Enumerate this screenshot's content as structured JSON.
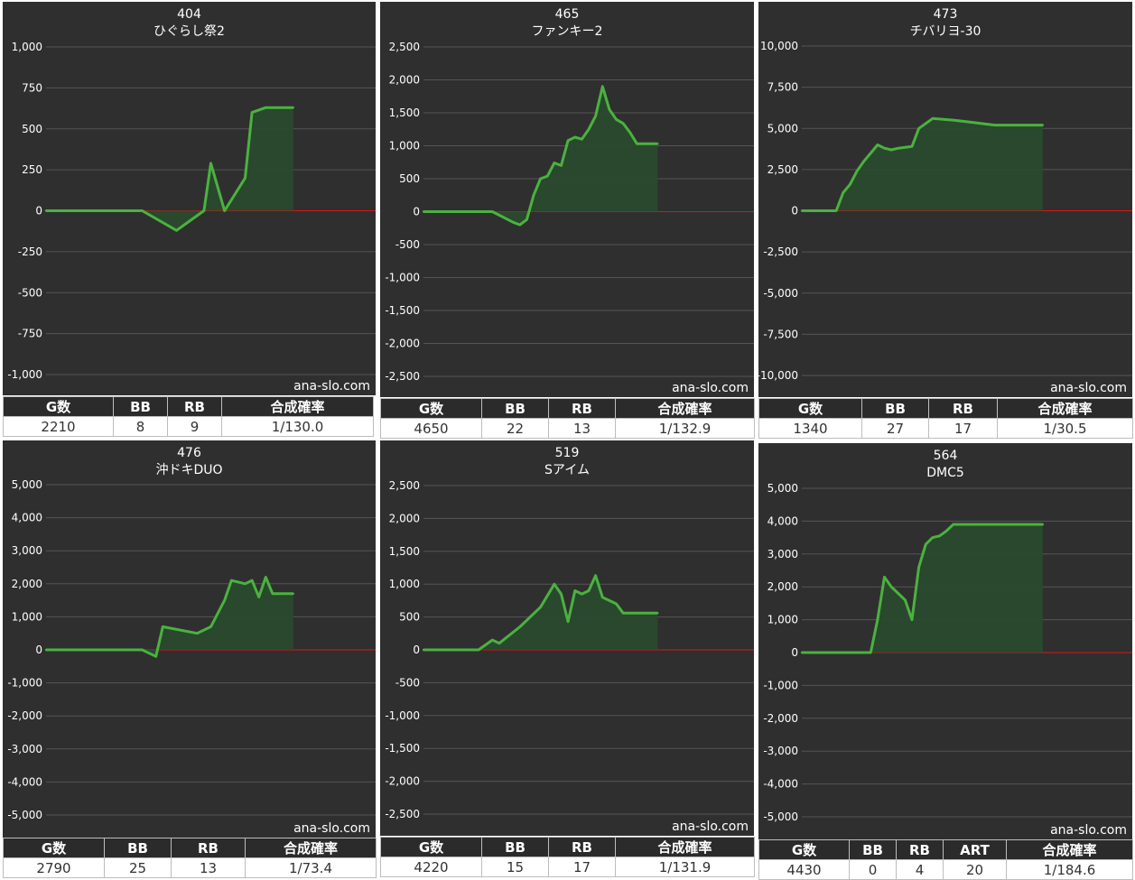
{
  "chart_data": [
    {
      "type": "area",
      "title": "404",
      "subtitle": "ひぐらし祭2",
      "watermark": "ana-slo.com",
      "ylim": [
        -1000,
        1000
      ],
      "yticks": [
        1000,
        750,
        500,
        250,
        0,
        -250,
        -500,
        -750,
        -1000
      ],
      "ytick_labels": [
        "1,000",
        "750",
        "500",
        "250",
        "0",
        "-250",
        "-500",
        "-750",
        "-1,000"
      ],
      "grid": true,
      "x": [
        0,
        5,
        10,
        14,
        19,
        21,
        23,
        24,
        26,
        29,
        30,
        32,
        34,
        36
      ],
      "y": [
        0,
        0,
        0,
        0,
        -120,
        -60,
        0,
        290,
        0,
        200,
        600,
        630,
        630,
        630
      ],
      "xlim": [
        0,
        48
      ],
      "stats": {
        "headers": [
          "G数",
          "BB",
          "RB",
          "合成確率"
        ],
        "values": [
          "2210",
          "8",
          "9",
          "1/130.0"
        ]
      }
    },
    {
      "type": "area",
      "title": "465",
      "subtitle": "ファンキー2",
      "watermark": "ana-slo.com",
      "ylim": [
        -2500,
        2500
      ],
      "yticks": [
        2500,
        2000,
        1500,
        1000,
        500,
        0,
        -500,
        -1000,
        -1500,
        -2000,
        -2500
      ],
      "ytick_labels": [
        "2,500",
        "2,000",
        "1,500",
        "1,000",
        "500",
        "0",
        "-500",
        "-1,000",
        "-1,500",
        "-2,000",
        "-2,500"
      ],
      "grid": true,
      "x": [
        0,
        5,
        10,
        13,
        14,
        15,
        16,
        17,
        18,
        19,
        20,
        21,
        22,
        23,
        24,
        25,
        26,
        27,
        28,
        29,
        30,
        31,
        33,
        34
      ],
      "y": [
        0,
        0,
        0,
        -160,
        -200,
        -120,
        250,
        500,
        540,
        740,
        700,
        1080,
        1130,
        1100,
        1250,
        1450,
        1900,
        1550,
        1400,
        1340,
        1200,
        1030,
        1030,
        1030
      ],
      "xlim": [
        0,
        48
      ],
      "stats": {
        "headers": [
          "G数",
          "BB",
          "RB",
          "合成確率"
        ],
        "values": [
          "4650",
          "22",
          "13",
          "1/132.9"
        ]
      }
    },
    {
      "type": "area",
      "title": "473",
      "subtitle": "チバリヨ-30",
      "watermark": "ana-slo.com",
      "ylim": [
        -10000,
        10000
      ],
      "yticks": [
        10000,
        7500,
        5000,
        2500,
        0,
        -2500,
        -5000,
        -7500,
        -10000
      ],
      "ytick_labels": [
        "10,000",
        "7,500",
        "5,000",
        "2,500",
        "0",
        "-2,500",
        "-5,000",
        "-7,500",
        "-10,000"
      ],
      "grid": true,
      "x": [
        0,
        3,
        5,
        6,
        7,
        8,
        9,
        10,
        11,
        12,
        13,
        14,
        16,
        17,
        19,
        22,
        24,
        26,
        28,
        32,
        35
      ],
      "y": [
        0,
        0,
        0,
        1100,
        1600,
        2400,
        3000,
        3500,
        4000,
        3800,
        3700,
        3800,
        3900,
        5000,
        5600,
        5500,
        5400,
        5300,
        5200,
        5200,
        5200
      ],
      "xlim": [
        0,
        48
      ],
      "stats": {
        "headers": [
          "G数",
          "BB",
          "RB",
          "合成確率"
        ],
        "values": [
          "1340",
          "27",
          "17",
          "1/30.5"
        ]
      }
    },
    {
      "type": "area",
      "title": "476",
      "subtitle": "沖ドキDUO",
      "watermark": "ana-slo.com",
      "ylim": [
        -5000,
        5000
      ],
      "yticks": [
        5000,
        4000,
        3000,
        2000,
        1000,
        0,
        -1000,
        -2000,
        -3000,
        -4000,
        -5000
      ],
      "ytick_labels": [
        "5,000",
        "4,000",
        "3,000",
        "2,000",
        "1,000",
        "0",
        "-1,000",
        "-2,000",
        "-3,000",
        "-4,000",
        "-5,000"
      ],
      "grid": true,
      "x": [
        0,
        6,
        12,
        14,
        15,
        16,
        17,
        22,
        24,
        26,
        27,
        29,
        30,
        31,
        32,
        33,
        34,
        35,
        36
      ],
      "y": [
        0,
        0,
        0,
        0,
        -100,
        -200,
        700,
        500,
        700,
        1500,
        2100,
        2000,
        2100,
        1600,
        2200,
        1700,
        1700,
        1700,
        1700
      ],
      "xlim": [
        0,
        48
      ],
      "stats": {
        "headers": [
          "G数",
          "BB",
          "RB",
          "合成確率"
        ],
        "values": [
          "2790",
          "25",
          "13",
          "1/73.4"
        ]
      }
    },
    {
      "type": "area",
      "title": "519",
      "subtitle": "Sアイム",
      "watermark": "ana-slo.com",
      "ylim": [
        -2500,
        2500
      ],
      "yticks": [
        2500,
        2000,
        1500,
        1000,
        500,
        0,
        -500,
        -1000,
        -1500,
        -2000,
        -2500
      ],
      "ytick_labels": [
        "2,500",
        "2,000",
        "1,500",
        "1,000",
        "500",
        "0",
        "-500",
        "-1,000",
        "-1,500",
        "-2,000",
        "-2,500"
      ],
      "grid": true,
      "x": [
        0,
        4,
        8,
        10,
        11,
        14,
        17,
        19,
        20,
        21,
        22,
        23,
        24,
        25,
        26,
        27,
        28,
        29,
        30,
        31,
        33,
        34
      ],
      "y": [
        0,
        0,
        0,
        150,
        100,
        350,
        650,
        1000,
        850,
        430,
        900,
        850,
        900,
        1130,
        800,
        750,
        700,
        560,
        560,
        560,
        560,
        560
      ],
      "xlim": [
        0,
        48
      ],
      "stats": {
        "headers": [
          "G数",
          "BB",
          "RB",
          "合成確率"
        ],
        "values": [
          "4220",
          "15",
          "17",
          "1/131.9"
        ]
      }
    },
    {
      "type": "area",
      "title": "564",
      "subtitle": "DMC5",
      "watermark": "ana-slo.com",
      "ylim": [
        -5000,
        5000
      ],
      "yticks": [
        5000,
        4000,
        3000,
        2000,
        1000,
        0,
        -1000,
        -2000,
        -3000,
        -4000,
        -5000
      ],
      "ytick_labels": [
        "5,000",
        "4,000",
        "3,000",
        "2,000",
        "1,000",
        "0",
        "-1,000",
        "-2,000",
        "-3,000",
        "-4,000",
        "-5,000"
      ],
      "grid": true,
      "x": [
        0,
        5,
        10,
        11,
        12,
        13,
        14,
        15,
        16,
        17,
        18,
        19,
        20,
        21,
        22,
        25,
        30,
        35
      ],
      "y": [
        0,
        0,
        0,
        1000,
        2300,
        2000,
        1800,
        1600,
        1000,
        2600,
        3300,
        3500,
        3550,
        3700,
        3900,
        3900,
        3900,
        3900
      ],
      "xlim": [
        0,
        48
      ],
      "stats": {
        "headers": [
          "G数",
          "BB",
          "RB",
          "ART",
          "合成確率"
        ],
        "values": [
          "4430",
          "0",
          "4",
          "20",
          "1/184.6"
        ]
      }
    }
  ]
}
